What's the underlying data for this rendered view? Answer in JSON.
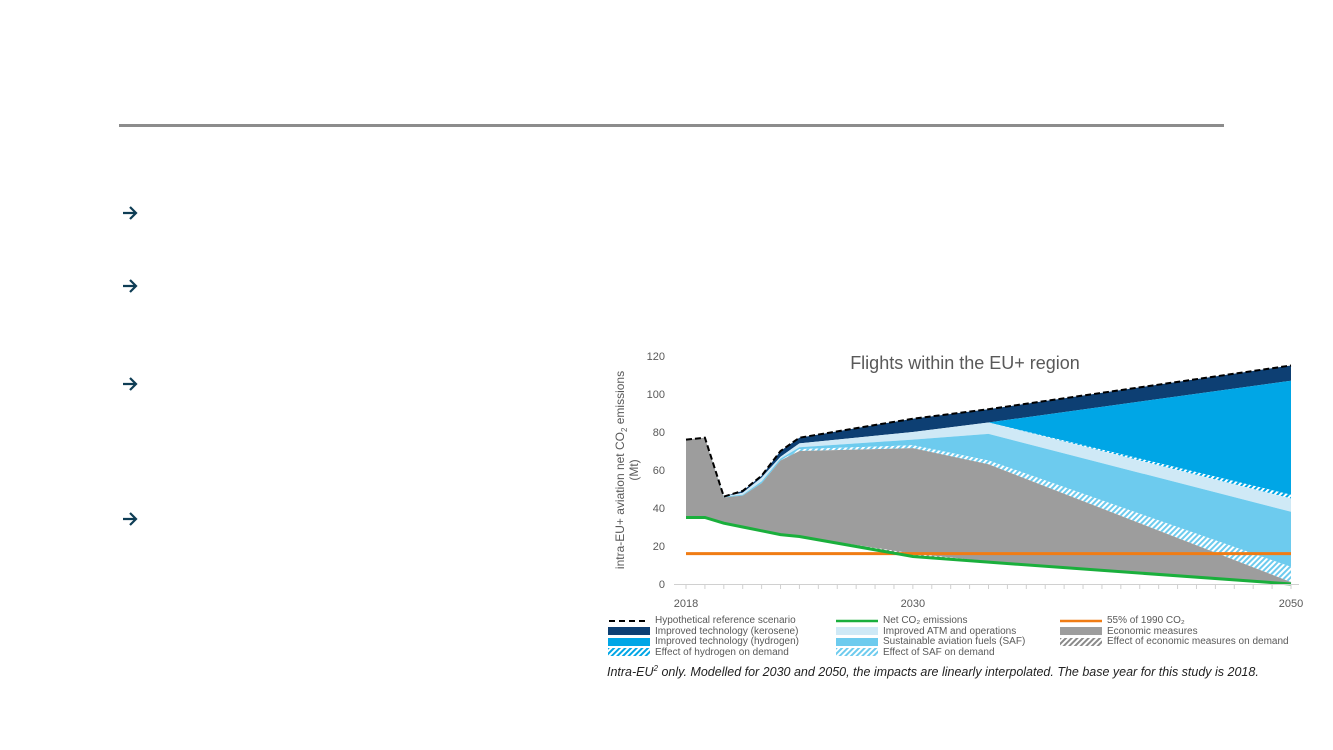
{
  "slide": {
    "bullet_icons": [
      "arrow-right-icon",
      "arrow-right-icon",
      "arrow-right-icon",
      "arrow-right-icon"
    ],
    "accent_color": "#0e3d55"
  },
  "chart_data": {
    "type": "area",
    "title": "Flights within the EU+ region",
    "ylabel": "intra-EU+ aviation net CO2 emissions (Mt)",
    "ylabel_line1": "intra-EU+ aviation net CO",
    "ylabel_sub": "2",
    "ylabel_line1_end": " emissions",
    "ylabel_line2": "(Mt)",
    "xlabel": "",
    "ylim": [
      0,
      120
    ],
    "xlim": [
      2018,
      2050
    ],
    "yticks": [
      "0",
      "20",
      "40",
      "60",
      "80",
      "100",
      "120"
    ],
    "xtick_labels": [
      "2018",
      "2030",
      "2050"
    ],
    "x": [
      2018,
      2019,
      2020,
      2021,
      2022,
      2023,
      2024,
      2030,
      2034,
      2050
    ],
    "boundaries": {
      "reference": [
        76,
        77,
        46,
        49,
        57,
        70,
        77,
        87,
        92,
        115
      ],
      "kerosene_bottom": [
        76,
        77,
        46,
        48,
        56,
        67,
        74,
        80,
        85,
        107
      ],
      "hydrogen_bottom": [
        76,
        77,
        46,
        48,
        56,
        67,
        74,
        80,
        85,
        47
      ],
      "hydrogen_demand_bottom": [
        76,
        77,
        46,
        48,
        56,
        67,
        74,
        80,
        85,
        45
      ],
      "atm_bottom": [
        76,
        77,
        46,
        47,
        54,
        66,
        72,
        76,
        79,
        38
      ],
      "saf_bottom": [
        76,
        77,
        45.5,
        46.5,
        53,
        65,
        71,
        73,
        65,
        9
      ],
      "saf_demand_bottom": [
        76,
        77,
        45.5,
        46.5,
        53,
        65,
        70,
        71.5,
        63,
        1
      ],
      "economic_bottom": [
        35,
        35,
        32,
        30,
        28,
        26,
        25,
        16,
        12,
        0.5
      ],
      "net": [
        35,
        35,
        32,
        30,
        28,
        26,
        25,
        14.5,
        11.5,
        0
      ]
    },
    "threshold_55pct_1990": 16,
    "legend": [
      {
        "label": "Hypothetical reference scenario",
        "style": "dashed",
        "color": "#000000"
      },
      {
        "label": "Net CO₂ emissions",
        "style": "line",
        "color": "#1aaf3c"
      },
      {
        "label": "55% of 1990 CO₂",
        "style": "line",
        "color": "#f07c14"
      },
      {
        "label": "Improved technology (kerosene)",
        "style": "fill",
        "color": "#0d3f73"
      },
      {
        "label": "Improved ATM and operations",
        "style": "fill",
        "color": "#cfe9f6"
      },
      {
        "label": "Economic measures",
        "style": "fill",
        "color": "#9d9d9d"
      },
      {
        "label": "Improved technology (hydrogen)",
        "style": "fill",
        "color": "#00a6e6"
      },
      {
        "label": "Sustainable aviation fuels (SAF)",
        "style": "fill",
        "color": "#6dcbee"
      },
      {
        "label": "Effect of economic measures on demand",
        "style": "hatch",
        "color": "#7a7a7a"
      },
      {
        "label": "Effect of hydrogen on demand",
        "style": "hatch",
        "color": "#00a6e6"
      },
      {
        "label": "Effect of SAF on demand",
        "style": "hatch",
        "color": "#6dcbee"
      }
    ],
    "legend_placement": "bottom",
    "caption_pre": "Intra-EU",
    "caption_sup": "2",
    "caption_post": " only. Modelled for 2030 and 2050, the impacts are linearly interpolated. The base year for this study is 2018."
  }
}
